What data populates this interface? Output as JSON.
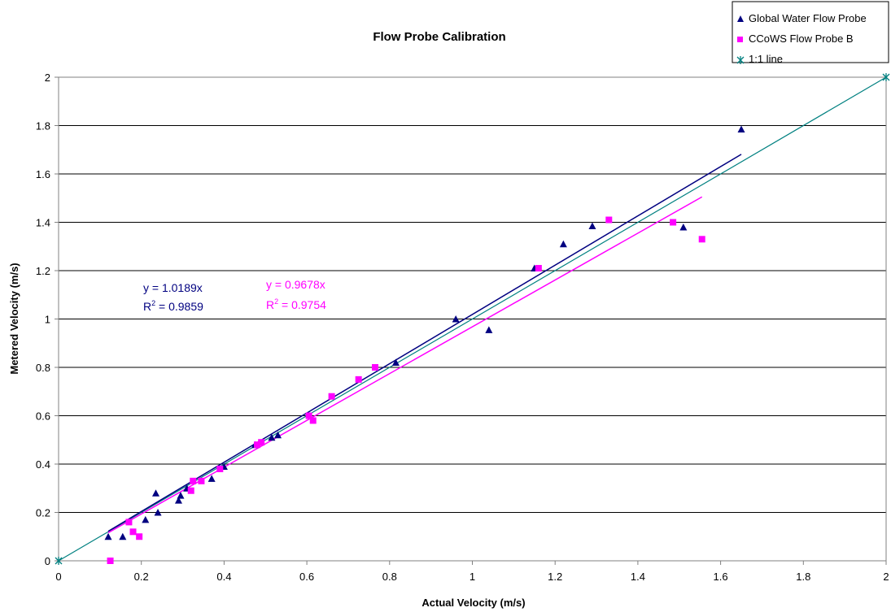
{
  "chart_data": {
    "type": "scatter",
    "title": "Flow Probe Calibration",
    "xlabel": "Actual Velocity (m/s)",
    "ylabel": "Metered Velocity (m/s)",
    "xlim": [
      0,
      2
    ],
    "ylim": [
      0,
      2
    ],
    "x_ticks": [
      "0",
      "0.2",
      "0.4",
      "0.6",
      "0.8",
      "1",
      "1.2",
      "1.4",
      "1.6",
      "1.8",
      "2"
    ],
    "y_ticks": [
      "0",
      "0.2",
      "0.4",
      "0.6",
      "0.8",
      "1",
      "1.2",
      "1.4",
      "1.6",
      "1.8",
      "2"
    ],
    "grid": "horizontal major gridlines",
    "legend_position": "top-right",
    "series": [
      {
        "name": "Global Water Flow Probe",
        "marker": "triangle",
        "color": "#000080",
        "points": [
          [
            0.12,
            0.1
          ],
          [
            0.155,
            0.1
          ],
          [
            0.21,
            0.17
          ],
          [
            0.235,
            0.28
          ],
          [
            0.24,
            0.2
          ],
          [
            0.29,
            0.25
          ],
          [
            0.295,
            0.27
          ],
          [
            0.31,
            0.3
          ],
          [
            0.37,
            0.34
          ],
          [
            0.4,
            0.39
          ],
          [
            0.475,
            0.48
          ],
          [
            0.515,
            0.51
          ],
          [
            0.53,
            0.52
          ],
          [
            0.815,
            0.82
          ],
          [
            0.96,
            1.0
          ],
          [
            1.04,
            0.955
          ],
          [
            1.15,
            1.21
          ],
          [
            1.22,
            1.31
          ],
          [
            1.29,
            1.385
          ],
          [
            1.51,
            1.38
          ],
          [
            1.65,
            1.785
          ]
        ]
      },
      {
        "name": "CCoWS Flow Probe B",
        "marker": "square",
        "color": "#ff00ff",
        "points": [
          [
            0.125,
            0.0
          ],
          [
            0.17,
            0.16
          ],
          [
            0.18,
            0.12
          ],
          [
            0.195,
            0.1
          ],
          [
            0.32,
            0.29
          ],
          [
            0.325,
            0.33
          ],
          [
            0.345,
            0.33
          ],
          [
            0.39,
            0.38
          ],
          [
            0.48,
            0.48
          ],
          [
            0.49,
            0.49
          ],
          [
            0.605,
            0.6
          ],
          [
            0.615,
            0.58
          ],
          [
            0.66,
            0.68
          ],
          [
            0.725,
            0.75
          ],
          [
            0.765,
            0.8
          ],
          [
            1.16,
            1.21
          ],
          [
            1.33,
            1.41
          ],
          [
            1.485,
            1.4
          ],
          [
            1.555,
            1.33
          ]
        ]
      },
      {
        "name": "1:1 line",
        "marker": "asterisk",
        "color": "#008080",
        "points": [
          [
            0,
            0
          ],
          [
            2,
            2
          ]
        ]
      }
    ],
    "trendlines": [
      {
        "series": "Global Water Flow Probe",
        "slope": 1.0189,
        "x_range": [
          0.12,
          1.65
        ],
        "color": "#000080",
        "equation": "y = 1.0189x",
        "r2_prefix": "R",
        "r2_value": " = 0.9859"
      },
      {
        "series": "CCoWS Flow Probe B",
        "slope": 0.9678,
        "x_range": [
          0.12,
          1.555
        ],
        "color": "#ff00ff",
        "equation": "y = 0.9678x",
        "r2_prefix": "R",
        "r2_value": " = 0.9754"
      }
    ]
  }
}
